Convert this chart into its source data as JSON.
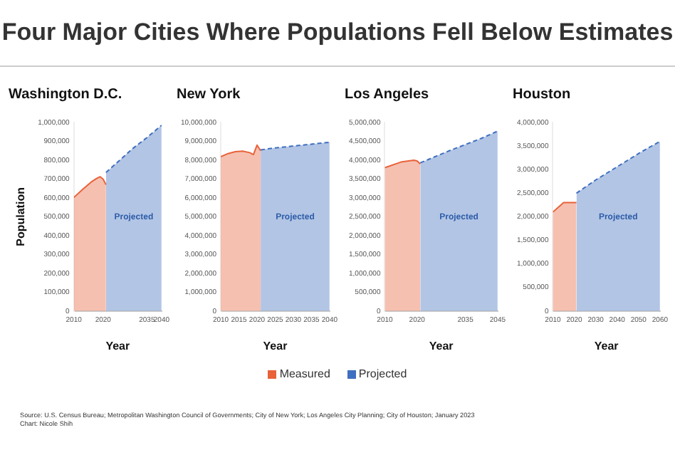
{
  "chart_data": [
    {
      "type": "area",
      "title": "Four Major Cities Where Populations Fell Below Estimates",
      "subtitle": "Washington D.C.",
      "xlabel": "Year",
      "ylabel": "Population",
      "legend": "bottom",
      "marker": "none",
      "xlim": [
        2010,
        2040
      ],
      "xticks": [
        2010,
        2020,
        2035,
        2040
      ],
      "ylim": [
        0,
        1000000
      ],
      "yticks": [
        {
          "value": 0,
          "label": "0"
        },
        {
          "value": 100000,
          "label": "100,000"
        },
        {
          "value": 200000,
          "label": "200,000"
        },
        {
          "value": 300000,
          "label": "300,000"
        },
        {
          "value": 400000,
          "label": "400,000"
        },
        {
          "value": 500000,
          "label": "500,000"
        },
        {
          "value": 600000,
          "label": "600,000"
        },
        {
          "value": 700000,
          "label": "700,000"
        },
        {
          "value": 800000,
          "label": "800,000"
        },
        {
          "value": 900000,
          "label": "900,000"
        },
        {
          "value": 1000000,
          "label": "1,000,000"
        }
      ],
      "series": [
        {
          "name": "Measured",
          "color": "#e8623a",
          "line_style": "solid",
          "x": [
            2010,
            2013,
            2016,
            2018,
            2019,
            2020,
            2021
          ],
          "values": [
            602000,
            645000,
            685000,
            705000,
            712000,
            700000,
            670000
          ]
        },
        {
          "name": "Projected",
          "color": "#3f6fbf",
          "line_style": "dashed",
          "x": [
            2021,
            2025,
            2030,
            2035,
            2040
          ],
          "values": [
            735000,
            790000,
            860000,
            920000,
            985000
          ]
        }
      ],
      "annotations": [
        "Projected",
        "Source: U.S. Census Bureau; Metropolitan Washington Council of Governments; City of New York; Los Angeles City Planning; City of Houston; January 2023",
        "Chart: Nicole Shih"
      ]
    },
    {
      "type": "area",
      "subtitle": "New York",
      "xlabel": "Year",
      "marker": "none",
      "xlim": [
        2010,
        2040
      ],
      "xticks": [
        2010,
        2015,
        2020,
        2025,
        2030,
        2035,
        2040
      ],
      "ylim": [
        0,
        10000000
      ],
      "yticks": [
        {
          "value": 0,
          "label": "0"
        },
        {
          "value": 1000000,
          "label": "1,000,000"
        },
        {
          "value": 2000000,
          "label": "2,000,000"
        },
        {
          "value": 3000000,
          "label": "3,000,000"
        },
        {
          "value": 4000000,
          "label": "4,000,000"
        },
        {
          "value": 5000000,
          "label": "5,000,000"
        },
        {
          "value": 6000000,
          "label": "6,000,000"
        },
        {
          "value": 7000000,
          "label": "7,000,000"
        },
        {
          "value": 8000000,
          "label": "8,000,000"
        },
        {
          "value": 9000000,
          "label": "9,000,000"
        },
        {
          "value": 10000000,
          "label": "10,000,000"
        }
      ],
      "series": [
        {
          "color": "#e8623a",
          "line_style": "solid",
          "x": [
            2010,
            2012,
            2014,
            2016,
            2018,
            2019,
            2020,
            2021
          ],
          "values": [
            8180000,
            8350000,
            8450000,
            8480000,
            8400000,
            8300000,
            8800000,
            8500000
          ]
        },
        {
          "color": "#3f6fbf",
          "line_style": "dashed",
          "x": [
            2021,
            2025,
            2030,
            2035,
            2040
          ],
          "values": [
            8550000,
            8650000,
            8750000,
            8850000,
            8950000
          ]
        }
      ],
      "annotations": [
        "Projected"
      ]
    },
    {
      "type": "area",
      "subtitle": "Los Angeles",
      "xlabel": "Year",
      "marker": "none",
      "xlim": [
        2010,
        2045
      ],
      "xticks": [
        2010,
        2020,
        2035,
        2045
      ],
      "ylim": [
        0,
        5000000
      ],
      "yticks": [
        {
          "value": 0,
          "label": "0"
        },
        {
          "value": 500000,
          "label": "500,000"
        },
        {
          "value": 1000000,
          "label": "1,000,000"
        },
        {
          "value": 1500000,
          "label": "1,500,000"
        },
        {
          "value": 2000000,
          "label": "2,000,000"
        },
        {
          "value": 2500000,
          "label": "2,500,000"
        },
        {
          "value": 3000000,
          "label": "3,000,000"
        },
        {
          "value": 3500000,
          "label": "3,500,000"
        },
        {
          "value": 4000000,
          "label": "4,000,000"
        },
        {
          "value": 4500000,
          "label": "4,500,000"
        },
        {
          "value": 5000000,
          "label": "5,000,000"
        }
      ],
      "series": [
        {
          "color": "#e8623a",
          "line_style": "solid",
          "x": [
            2010,
            2015,
            2019,
            2020,
            2021
          ],
          "values": [
            3800000,
            3950000,
            4000000,
            3980000,
            3900000
          ]
        },
        {
          "color": "#3f6fbf",
          "line_style": "dashed",
          "x": [
            2021,
            2030,
            2040,
            2045
          ],
          "values": [
            3930000,
            4250000,
            4580000,
            4770000
          ]
        }
      ],
      "annotations": [
        "Projected"
      ]
    },
    {
      "type": "area",
      "subtitle": "Houston",
      "xlabel": "Year",
      "marker": "none",
      "xlim": [
        2010,
        2060
      ],
      "xticks": [
        2010,
        2020,
        2030,
        2040,
        2050,
        2060
      ],
      "ylim": [
        0,
        4000000
      ],
      "yticks": [
        {
          "value": 0,
          "label": "0"
        },
        {
          "value": 500000,
          "label": "500,000"
        },
        {
          "value": 1000000,
          "label": "1,000,000"
        },
        {
          "value": 1500000,
          "label": "1,500,000"
        },
        {
          "value": 2000000,
          "label": "2,000,000"
        },
        {
          "value": 2500000,
          "label": "2,500,000"
        },
        {
          "value": 3000000,
          "label": "3,000,000"
        },
        {
          "value": 3500000,
          "label": "3,500,000"
        },
        {
          "value": 4000000,
          "label": "4,000,000"
        }
      ],
      "series": [
        {
          "color": "#e8623a",
          "line_style": "solid",
          "x": [
            2010,
            2015,
            2020,
            2021
          ],
          "values": [
            2100000,
            2300000,
            2300000,
            2300000
          ]
        },
        {
          "color": "#3f6fbf",
          "line_style": "dashed",
          "x": [
            2021,
            2030,
            2040,
            2050,
            2060
          ],
          "values": [
            2500000,
            2780000,
            3060000,
            3340000,
            3600000
          ]
        }
      ],
      "annotations": [
        "Projected"
      ]
    }
  ]
}
